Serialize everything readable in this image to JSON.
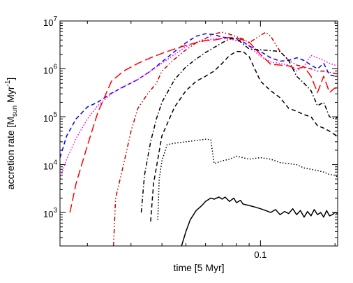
{
  "chart_data": {
    "type": "line",
    "title": "",
    "xlabel": "time [5 Myr]",
    "ylabel": {
      "prefix": "accretion rate [M",
      "sub": "sun",
      "unit": " Myr",
      "sup": "-1",
      "suffix": "]"
    },
    "xscale": "log",
    "yscale": "log",
    "xlim": [
      0.0155,
      0.205
    ],
    "ylim": [
      200,
      10000000
    ],
    "grid": false,
    "legend": "none",
    "x_ticks": [
      {
        "value": 0.1,
        "label": "0.1"
      }
    ],
    "y_ticks": [
      {
        "value": 1000,
        "base": "10",
        "exp": "3"
      },
      {
        "value": 10000,
        "base": "10",
        "exp": "4"
      },
      {
        "value": 100000,
        "base": "10",
        "exp": "5"
      },
      {
        "value": 1000000,
        "base": "10",
        "exp": "6"
      },
      {
        "value": 10000000,
        "base": "10",
        "exp": "7"
      }
    ],
    "series": [
      {
        "color": "#0000ff",
        "style": "dashed",
        "x": [
          0.0155,
          0.0165,
          0.018,
          0.02,
          0.022,
          0.025,
          0.028,
          0.032,
          0.036,
          0.04,
          0.045,
          0.05,
          0.055,
          0.06,
          0.065,
          0.07,
          0.075,
          0.08,
          0.085,
          0.09,
          0.1,
          0.11,
          0.12,
          0.13,
          0.14,
          0.15,
          0.16,
          0.17,
          0.18,
          0.19,
          0.2,
          0.205
        ],
        "y": [
          14000,
          40000,
          90000,
          160000,
          200000,
          310000,
          420000,
          600000,
          900000,
          1400000,
          2300000,
          3500000,
          4800000,
          5400000,
          5200000,
          4600000,
          4400000,
          4100000,
          3700000,
          3000000,
          2300000,
          1700000,
          1450000,
          1500000,
          1700000,
          1500000,
          1200000,
          1000000,
          1300000,
          750000,
          700000,
          680000
        ]
      },
      {
        "color": "#ff00ff",
        "style": "dotted",
        "x": [
          0.0155,
          0.0165,
          0.018,
          0.02,
          0.022,
          0.025,
          0.028,
          0.032,
          0.036,
          0.04,
          0.045,
          0.05,
          0.055,
          0.06,
          0.065,
          0.07,
          0.075,
          0.08,
          0.085,
          0.09,
          0.1,
          0.11,
          0.12,
          0.13,
          0.14,
          0.15,
          0.16,
          0.17,
          0.18,
          0.19,
          0.2,
          0.205
        ],
        "y": [
          5000,
          13000,
          35000,
          90000,
          170000,
          300000,
          430000,
          600000,
          900000,
          1300000,
          2000000,
          2900000,
          3600000,
          4000000,
          4200000,
          4300000,
          4200000,
          3900000,
          3500000,
          3000000,
          1800000,
          1400000,
          1300000,
          1200000,
          900000,
          1150000,
          1900000,
          1700000,
          1500000,
          1300000,
          1200000,
          1200000
        ]
      },
      {
        "color": "#ff0000",
        "style": "long-dash",
        "x": [
          0.017,
          0.018,
          0.02,
          0.022,
          0.025,
          0.028,
          0.032,
          0.036,
          0.04,
          0.045,
          0.05,
          0.055,
          0.06,
          0.065,
          0.07,
          0.075,
          0.08,
          0.085,
          0.09,
          0.1,
          0.11,
          0.12,
          0.13,
          0.14,
          0.15,
          0.16,
          0.17,
          0.18,
          0.19,
          0.2,
          0.205
        ],
        "y": [
          1000,
          4000,
          25000,
          120000,
          550000,
          900000,
          1300000,
          1700000,
          2100000,
          2600000,
          3100000,
          3500000,
          3900000,
          4000000,
          4300000,
          4500000,
          4400000,
          4000000,
          3600000,
          2000000,
          1250000,
          1200000,
          1150000,
          1000000,
          1100000,
          700000,
          320000,
          700000,
          320000,
          400000,
          380000
        ]
      },
      {
        "color": "#cc0000",
        "style": "dash-dot-dot",
        "x": [
          0.0255,
          0.026,
          0.028,
          0.03,
          0.032,
          0.035,
          0.038,
          0.04,
          0.045,
          0.05,
          0.055,
          0.06,
          0.065,
          0.07,
          0.075,
          0.08,
          0.085,
          0.09,
          0.095,
          0.1,
          0.105,
          0.11,
          0.12,
          0.13,
          0.14,
          0.15,
          0.16,
          0.17,
          0.18,
          0.19,
          0.2,
          0.205
        ],
        "y": [
          200,
          2000,
          10000,
          50000,
          150000,
          300000,
          500000,
          900000,
          1600000,
          2500000,
          3500000,
          4300000,
          5400000,
          5800000,
          5300000,
          4700000,
          4200000,
          3500000,
          4200000,
          5000000,
          5800000,
          4800000,
          2300000,
          1500000,
          1200000,
          1100000,
          1000000,
          900000,
          900000,
          850000,
          800000,
          780000
        ]
      },
      {
        "color": "#000000",
        "style": "dash-dot",
        "x": [
          0.033,
          0.034,
          0.036,
          0.038,
          0.04,
          0.045,
          0.05,
          0.055,
          0.06,
          0.065,
          0.07,
          0.075,
          0.08,
          0.09,
          0.1,
          0.11,
          0.12,
          0.13,
          0.14,
          0.15,
          0.16,
          0.17,
          0.18,
          0.19,
          0.2,
          0.205
        ],
        "y": [
          1000,
          6000,
          30000,
          90000,
          200000,
          600000,
          1100000,
          1600000,
          2200000,
          2800000,
          3500000,
          4200000,
          4300000,
          2600000,
          2500000,
          2400000,
          2300000,
          1500000,
          700000,
          500000,
          350000,
          170000,
          200000,
          100000,
          90000,
          100000
        ]
      },
      {
        "color": "#000000",
        "style": "dashed",
        "x": [
          0.036,
          0.037,
          0.04,
          0.045,
          0.05,
          0.055,
          0.06,
          0.065,
          0.07,
          0.075,
          0.08,
          0.085,
          0.09,
          0.1,
          0.11,
          0.12,
          0.13,
          0.14,
          0.15,
          0.16,
          0.17,
          0.18,
          0.19,
          0.2,
          0.205
        ],
        "y": [
          650,
          4000,
          40000,
          160000,
          350000,
          550000,
          700000,
          900000,
          1300000,
          1900000,
          2300000,
          2300000,
          1800000,
          550000,
          350000,
          250000,
          150000,
          130000,
          110000,
          100000,
          65000,
          58000,
          50000,
          42000,
          40000
        ]
      },
      {
        "color": "#000000",
        "style": "dotted",
        "x": [
          0.0385,
          0.039,
          0.04,
          0.042,
          0.045,
          0.05,
          0.055,
          0.06,
          0.063,
          0.065,
          0.07,
          0.075,
          0.08,
          0.09,
          0.1,
          0.11,
          0.12,
          0.13,
          0.14,
          0.15,
          0.16,
          0.17,
          0.18,
          0.19,
          0.2,
          0.205
        ],
        "y": [
          700,
          5000,
          12000,
          26000,
          28000,
          30000,
          32000,
          34000,
          33000,
          10500,
          12000,
          13000,
          15000,
          13000,
          14000,
          13000,
          11000,
          10500,
          10000,
          8500,
          8000,
          7500,
          7000,
          6200,
          6000,
          5500
        ]
      },
      {
        "color": "#000000",
        "style": "solid",
        "x": [
          0.048,
          0.05,
          0.052,
          0.055,
          0.058,
          0.06,
          0.063,
          0.065,
          0.068,
          0.07,
          0.072,
          0.075,
          0.078,
          0.08,
          0.083,
          0.085,
          0.09,
          0.095,
          0.1,
          0.105,
          0.11,
          0.115,
          0.12,
          0.125,
          0.13,
          0.135,
          0.14,
          0.145,
          0.15,
          0.155,
          0.16,
          0.165,
          0.17,
          0.175,
          0.18,
          0.185,
          0.19,
          0.195,
          0.2,
          0.205
        ],
        "y": [
          200,
          400,
          700,
          1100,
          1400,
          1700,
          2000,
          1900,
          2100,
          1900,
          2100,
          1700,
          2000,
          1600,
          1800,
          1500,
          1400,
          1300,
          1200,
          1100,
          1000,
          1150,
          900,
          1050,
          950,
          1200,
          900,
          1100,
          800,
          1050,
          850,
          1150,
          900,
          1000,
          800,
          1100,
          850,
          900,
          1000,
          950
        ]
      }
    ]
  }
}
